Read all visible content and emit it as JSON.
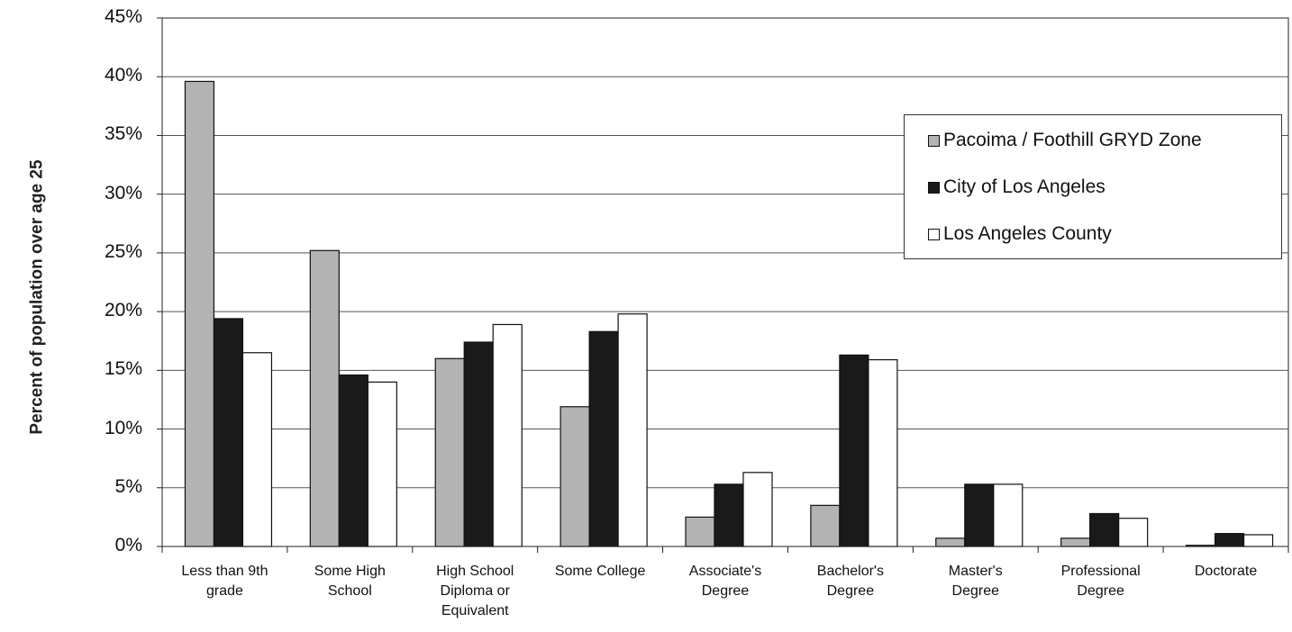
{
  "chart_data": {
    "type": "bar",
    "title": "",
    "xlabel": "",
    "ylabel": "Percent of population over age 25",
    "ylim": [
      0,
      45
    ],
    "y_ticks": [
      "0%",
      "5%",
      "10%",
      "15%",
      "20%",
      "25%",
      "30%",
      "35%",
      "40%",
      "45%"
    ],
    "grid": true,
    "legend_position": "right",
    "categories": [
      [
        "Less than 9th",
        "grade"
      ],
      [
        "Some High",
        "School"
      ],
      [
        "High School",
        "Diploma or",
        "Equivalent"
      ],
      [
        "Some College"
      ],
      [
        "Associate's",
        "Degree"
      ],
      [
        "Bachelor's",
        "Degree"
      ],
      [
        "Master's",
        "Degree"
      ],
      [
        "Professional",
        "Degree"
      ],
      [
        "Doctorate"
      ]
    ],
    "series": [
      {
        "name": "Pacoima / Foothill GRYD Zone",
        "color": "#b3b3b3",
        "values": [
          39.6,
          25.2,
          16.0,
          11.9,
          2.5,
          3.5,
          0.7,
          0.7,
          0.1
        ]
      },
      {
        "name": "City of Los Angeles",
        "color": "#1a1a1a",
        "values": [
          19.4,
          14.6,
          17.4,
          18.3,
          5.3,
          16.3,
          5.3,
          2.8,
          1.1
        ]
      },
      {
        "name": "Los Angeles County",
        "color": "#ffffff",
        "values": [
          16.5,
          14.0,
          18.9,
          19.8,
          6.3,
          15.9,
          5.3,
          2.4,
          1.0
        ]
      }
    ]
  }
}
